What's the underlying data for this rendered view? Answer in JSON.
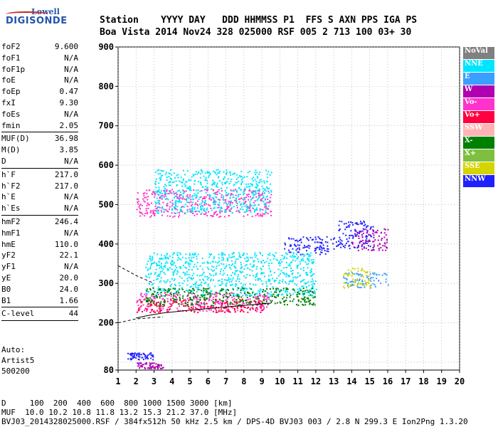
{
  "logo": {
    "line1": "Lowell",
    "line2": "DIGISONDE"
  },
  "header": {
    "row1": "Station    YYYY DAY   DDD HHMMSS P1  FFS S AXN PPS IGA PS",
    "row2": "Boa Vista 2014 Nov24 328 025000 RSF 005 2 713 100 03+ 30"
  },
  "params": [
    {
      "k": "foF2",
      "v": "9.600"
    },
    {
      "k": "foF1",
      "v": "N/A"
    },
    {
      "k": "foF1p",
      "v": "N/A"
    },
    {
      "k": "foE",
      "v": "N/A"
    },
    {
      "k": "foEp",
      "v": "0.47"
    },
    {
      "k": "fxI",
      "v": "9.30"
    },
    {
      "k": "foEs",
      "v": "N/A"
    },
    {
      "k": "fmin",
      "v": "2.05"
    },
    {
      "sep": true
    },
    {
      "k": "MUF(D)",
      "v": "36.98"
    },
    {
      "k": "M(D)",
      "v": "3.85"
    },
    {
      "k": "D",
      "v": "N/A"
    },
    {
      "sep": true
    },
    {
      "k": "h`F",
      "v": "217.0"
    },
    {
      "k": "h`F2",
      "v": "217.0"
    },
    {
      "k": "h`E",
      "v": "N/A"
    },
    {
      "k": "h`Es",
      "v": "N/A"
    },
    {
      "sep": true
    },
    {
      "k": "hmF2",
      "v": "246.4"
    },
    {
      "k": "hmF1",
      "v": "N/A"
    },
    {
      "k": "hmE",
      "v": "110.0"
    },
    {
      "k": "yF2",
      "v": "22.1"
    },
    {
      "k": "yF1",
      "v": "N/A"
    },
    {
      "k": "yE",
      "v": "20.0"
    },
    {
      "k": "B0",
      "v": "24.0"
    },
    {
      "k": "B1",
      "v": "1.66"
    },
    {
      "sep": true
    },
    {
      "k": "C-level",
      "v": "44"
    },
    {
      "sep": true
    }
  ],
  "auto": {
    "line1": "Auto:",
    "line2": "Artist5",
    "line3": "500200"
  },
  "footer": {
    "line1": "D     100  200  400  600  800 1000 1500 3000 [km]",
    "line2": "MUF  10.0 10.2 10.8 11.8 13.2 15.3 21.2 37.0 [MHz]",
    "line3": "BVJ03_2014328025000.RSF / 384fx512h 50 kHz 2.5 km / DPS-4D BVJ03 003 / 2.8 N 299.3 E Ion2Png 1.3.20"
  },
  "legend": [
    {
      "label": "NoVal",
      "color": "#808080"
    },
    {
      "label": "NNE",
      "color": "#00e5ff"
    },
    {
      "label": "E",
      "color": "#3aa0ff"
    },
    {
      "label": "W",
      "color": "#b000b0"
    },
    {
      "label": "Vo-",
      "color": "#ff33cc"
    },
    {
      "label": "Vo+",
      "color": "#ff0040"
    },
    {
      "label": "SSW",
      "color": "#ffb3b3"
    },
    {
      "label": "X-",
      "color": "#008000"
    },
    {
      "label": "X+",
      "color": "#7fbf3f"
    },
    {
      "label": "SSE",
      "color": "#d4d400"
    },
    {
      "label": "NNW",
      "color": "#2020ff"
    }
  ],
  "chart_data": {
    "type": "scatter",
    "title": "",
    "xlabel": "",
    "ylabel": "",
    "xlim": [
      1,
      20
    ],
    "ylim": [
      80,
      900
    ],
    "xticks": [
      1,
      2,
      3,
      4,
      5,
      6,
      7,
      8,
      9,
      10,
      11,
      12,
      13,
      14,
      15,
      16,
      17,
      18,
      19,
      20
    ],
    "yticks": [
      100,
      200,
      300,
      400,
      500,
      600,
      700,
      800,
      900
    ],
    "ytick_labels_shown": [
      80,
      200,
      300,
      400,
      500,
      600,
      700,
      800,
      900
    ],
    "grid": true,
    "legend_placement": "right",
    "clusters": [
      {
        "name": "NNW",
        "x": [
          10.2,
          13.2
        ],
        "y": [
          375,
          420
        ]
      },
      {
        "name": "NNW",
        "x": [
          13.2,
          15.2
        ],
        "y": [
          390,
          460
        ]
      },
      {
        "name": "W",
        "x": [
          14.0,
          16.0
        ],
        "y": [
          385,
          440
        ]
      },
      {
        "name": "Vo-",
        "x": [
          2.0,
          9.5
        ],
        "y": [
          230,
          280
        ]
      },
      {
        "name": "Vo+",
        "x": [
          2.0,
          9.0
        ],
        "y": [
          228,
          262
        ]
      },
      {
        "name": "NNE",
        "x": [
          2.5,
          12.0
        ],
        "y": [
          270,
          380
        ]
      },
      {
        "name": "E",
        "x": [
          13.5,
          16.0
        ],
        "y": [
          290,
          330
        ]
      },
      {
        "name": "Vo-",
        "x": [
          2.0,
          9.5
        ],
        "y": [
          470,
          540
        ]
      },
      {
        "name": "NNE",
        "x": [
          3.0,
          9.5
        ],
        "y": [
          480,
          590
        ]
      },
      {
        "name": "SSE",
        "x": [
          13.5,
          15.0
        ],
        "y": [
          290,
          340
        ]
      },
      {
        "name": "X-",
        "x": [
          2.5,
          12.0
        ],
        "y": [
          245,
          290
        ]
      },
      {
        "name": "NNW",
        "x": [
          1.5,
          3.0
        ],
        "y": [
          108,
          125
        ]
      },
      {
        "name": "W",
        "x": [
          2.0,
          3.5
        ],
        "y": [
          85,
          100
        ]
      }
    ],
    "trace_line": {
      "x": [
        2.0,
        2.6,
        3.5,
        5.0,
        7.0,
        9.0,
        9.5,
        9.6
      ],
      "y": [
        212,
        218,
        225,
        232,
        240,
        248,
        250,
        258
      ]
    },
    "trace_dashed": {
      "x": [
        1.0,
        2.0,
        3.5
      ],
      "y": [
        200,
        210,
        215
      ]
    },
    "trace_upper": {
      "x": [
        1.0,
        2.0,
        3.0
      ],
      "y": [
        345,
        320,
        300
      ]
    }
  }
}
